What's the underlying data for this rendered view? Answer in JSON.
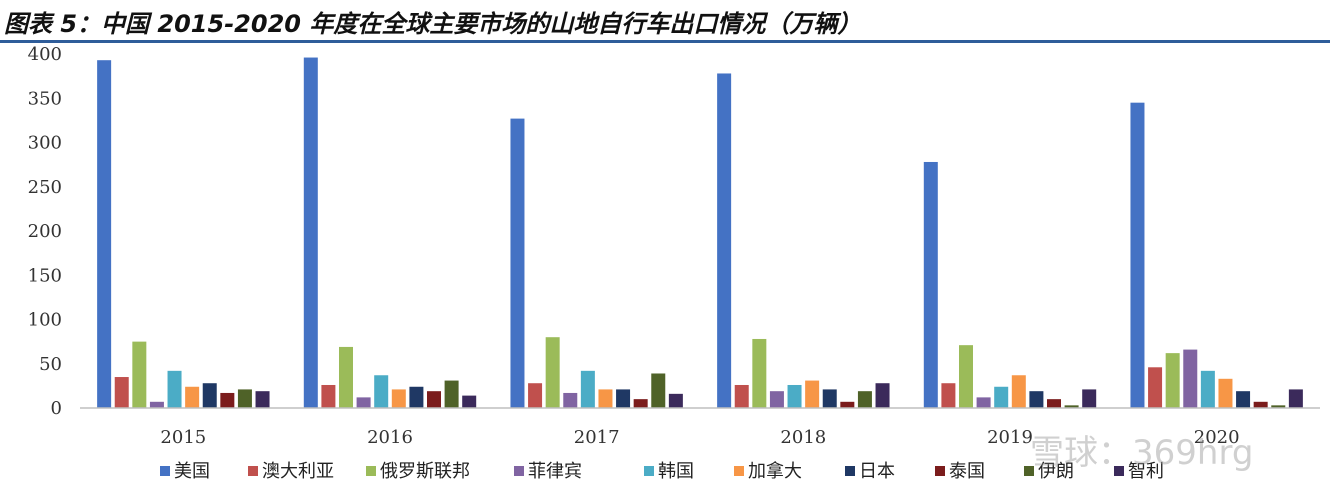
{
  "title": "图表 5：中国 2015-2020 年度在全球主要市场的山地自行车出口情况（万辆）",
  "watermark": "雪球：369hrg",
  "chart_data": {
    "type": "bar",
    "categories": [
      "2015",
      "2016",
      "2017",
      "2018",
      "2019",
      "2020"
    ],
    "ylim": [
      0,
      400
    ],
    "yticks": [
      0,
      50,
      100,
      150,
      200,
      250,
      300,
      350,
      400
    ],
    "grid": false,
    "legend_position": "bottom",
    "series": [
      {
        "name": "美国",
        "color": "#4472c4",
        "values": [
          393,
          396,
          327,
          378,
          278,
          345
        ]
      },
      {
        "name": "澳大利亚",
        "color": "#c0504d",
        "values": [
          35,
          26,
          28,
          26,
          28,
          46
        ]
      },
      {
        "name": "俄罗斯联邦",
        "color": "#9bbb59",
        "values": [
          75,
          69,
          80,
          78,
          71,
          62
        ]
      },
      {
        "name": "菲律宾",
        "color": "#8064a2",
        "values": [
          7,
          12,
          17,
          19,
          12,
          66
        ]
      },
      {
        "name": "韩国",
        "color": "#4bacc6",
        "values": [
          42,
          37,
          42,
          26,
          24,
          42
        ]
      },
      {
        "name": "加拿大",
        "color": "#f79646",
        "values": [
          24,
          21,
          21,
          31,
          37,
          33
        ]
      },
      {
        "name": "日本",
        "color": "#1f3864",
        "values": [
          28,
          24,
          21,
          21,
          19,
          19
        ]
      },
      {
        "name": "泰国",
        "color": "#7b1c1c",
        "values": [
          17,
          19,
          10,
          7,
          10,
          7
        ]
      },
      {
        "name": "伊朗",
        "color": "#4f6228",
        "values": [
          21,
          31,
          39,
          19,
          3,
          3
        ]
      },
      {
        "name": "智利",
        "color": "#3b2a5b",
        "values": [
          19,
          14,
          16,
          28,
          21,
          21
        ]
      }
    ]
  }
}
